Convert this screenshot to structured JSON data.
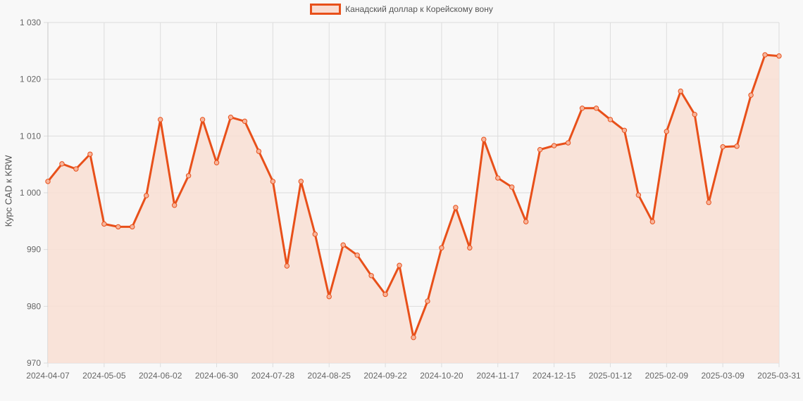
{
  "legend": {
    "label": "Канадский доллар к Корейскому вону"
  },
  "axis": {
    "ylabel": "Курс CAD к KRW"
  },
  "colors": {
    "line": "#e8501a",
    "fill": "#f9dfd4",
    "grid": "#dddddd",
    "text": "#666666",
    "background": "#f8f8f8"
  },
  "chart_data": {
    "type": "line",
    "title": "",
    "legend": [
      "Канадский доллар к Корейскому вону"
    ],
    "xlabel": "",
    "ylabel": "Курс CAD к KRW",
    "ylim": [
      970,
      1030
    ],
    "yticks": [
      970,
      980,
      990,
      1000,
      1010,
      1020,
      1030
    ],
    "ytick_labels": [
      "970",
      "980",
      "990",
      "1 000",
      "1 010",
      "1 020",
      "1 030"
    ],
    "xtick_labels": [
      "2024-04-07",
      "2024-05-05",
      "2024-06-02",
      "2024-06-30",
      "2024-07-28",
      "2024-08-25",
      "2024-09-22",
      "2024-10-20",
      "2024-11-17",
      "2024-12-15",
      "2025-01-12",
      "2025-02-09",
      "2025-03-09",
      "2025-03-31"
    ],
    "grid": true,
    "legend_position": "top",
    "x_start": "2024-04-07",
    "x_end": "2025-03-31",
    "interval": "weekly",
    "series": [
      {
        "name": "Канадский доллар к Корейскому вону",
        "values": [
          1002.0,
          1005.1,
          1004.2,
          1006.8,
          994.5,
          994.0,
          994.0,
          999.5,
          1012.9,
          997.8,
          1003.0,
          1012.9,
          1005.3,
          1013.3,
          1012.6,
          1007.3,
          1002.0,
          987.1,
          1002.0,
          992.7,
          981.7,
          990.8,
          989.0,
          985.4,
          982.1,
          987.2,
          974.5,
          980.9,
          990.3,
          997.4,
          990.3,
          1009.4,
          1002.6,
          1001.0,
          994.9,
          1007.6,
          1008.3,
          1008.8,
          1014.9,
          1014.9,
          1012.9,
          1011.0,
          999.6,
          994.9,
          1010.8,
          1017.9,
          1013.8,
          998.3,
          1008.1,
          1008.2,
          1017.2,
          1024.3,
          1024.1
        ]
      }
    ]
  }
}
